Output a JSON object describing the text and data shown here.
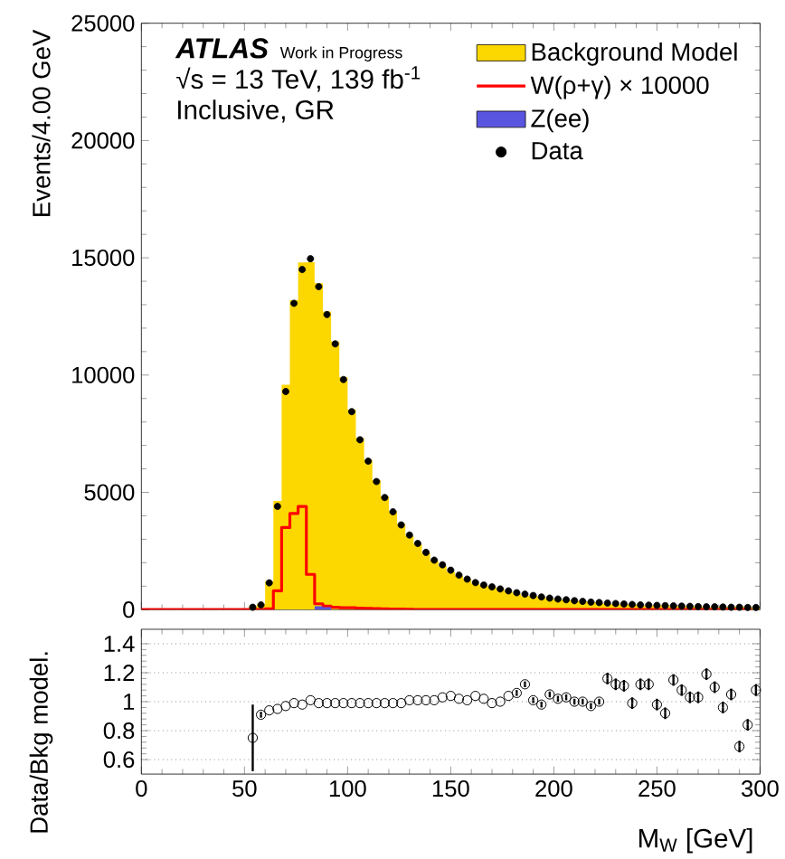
{
  "chart_data": [
    {
      "type": "histogram",
      "ylabel": "Events/4.00 GeV",
      "annotations": [
        "ATLAS",
        "Work in Progress",
        "√s = 13 TeV, 139 fb$^{-1}$",
        "Inclusive, GR"
      ],
      "bins": [
        0,
        4,
        8,
        12,
        16,
        20,
        24,
        28,
        32,
        36,
        40,
        44,
        48,
        52,
        56,
        60,
        64,
        68,
        72,
        76,
        80,
        84,
        88,
        92,
        96,
        100,
        104,
        108,
        112,
        116,
        120,
        124,
        128,
        132,
        136,
        140,
        144,
        148,
        152,
        156,
        160,
        164,
        168,
        172,
        176,
        180,
        184,
        188,
        192,
        196,
        200,
        204,
        208,
        212,
        216,
        220,
        224,
        228,
        232,
        236,
        240,
        244,
        248,
        252,
        256,
        260,
        264,
        268,
        272,
        276,
        280,
        284,
        288,
        292,
        296,
        300
      ],
      "series": [
        {
          "name": "Background Model",
          "type": "histogram",
          "color": "#fdd700",
          "values": [
            0,
            0,
            0,
            0,
            0,
            0,
            0,
            0,
            0,
            0,
            0,
            0,
            0,
            130,
            220,
            1210,
            4630,
            9590,
            13190,
            14800,
            14810,
            13910,
            12710,
            11440,
            9910,
            8530,
            7310,
            6390,
            5520,
            4830,
            4210,
            3650,
            3150,
            2790,
            2420,
            2090,
            1850,
            1620,
            1440,
            1290,
            1110,
            1030,
            980,
            880,
            770,
            680,
            590,
            590,
            550,
            470,
            440,
            410,
            380,
            350,
            330,
            300,
            240,
            230,
            220,
            220,
            180,
            170,
            180,
            180,
            140,
            140,
            140,
            130,
            100,
            100,
            120,
            100,
            140,
            110,
            80
          ]
        },
        {
          "name": "W(ρ+γ) × 10000",
          "type": "step",
          "color": "#ff0000",
          "x": [
            0,
            4,
            8,
            12,
            16,
            20,
            24,
            28,
            32,
            36,
            40,
            44,
            48,
            52,
            56,
            60,
            64,
            68,
            72,
            76,
            80,
            84,
            88,
            92,
            96,
            100,
            104,
            108,
            112,
            116,
            120,
            124,
            128,
            132,
            136,
            140,
            144,
            148,
            152,
            156,
            160,
            164,
            168,
            172,
            176,
            180,
            184,
            188,
            192,
            196,
            200,
            204,
            208,
            212,
            216,
            220,
            224,
            228,
            232,
            236,
            240,
            244,
            248,
            252,
            256,
            260,
            264,
            268,
            272,
            276,
            280,
            284,
            288,
            292,
            296
          ],
          "values": [
            0,
            0,
            0,
            0,
            0,
            0,
            0,
            0,
            0,
            0,
            0,
            0,
            0,
            0,
            0,
            30,
            800,
            3500,
            4100,
            4400,
            1500,
            250,
            150,
            100,
            80,
            80,
            60,
            50,
            40,
            30,
            20,
            20,
            10,
            0,
            0,
            0,
            0,
            0,
            0,
            0,
            0,
            0,
            0,
            0,
            0,
            0,
            0,
            0,
            0,
            0,
            0,
            0,
            0,
            0,
            0,
            0,
            0,
            0,
            0,
            0,
            0,
            0,
            0,
            0,
            0,
            0,
            0,
            0,
            0,
            0,
            0,
            0,
            0,
            0,
            0
          ]
        },
        {
          "name": "Z(ee)",
          "type": "histogram",
          "color": "#5a55e0",
          "values": [
            0,
            0,
            0,
            0,
            0,
            0,
            0,
            0,
            0,
            0,
            0,
            0,
            0,
            0,
            0,
            0,
            0,
            0,
            0,
            0,
            0,
            150,
            100,
            0,
            0,
            0,
            0,
            0,
            0,
            0,
            0,
            0,
            0,
            0,
            0,
            0,
            0,
            0,
            0,
            0,
            0,
            0,
            0,
            0,
            0,
            0,
            0,
            0,
            0,
            0,
            0,
            0,
            0,
            0,
            0,
            0,
            0,
            0,
            0,
            0,
            0,
            0,
            0,
            0,
            0,
            0,
            0,
            0,
            0,
            0,
            0,
            0,
            0,
            0,
            0
          ]
        },
        {
          "name": "Data",
          "type": "scatter",
          "marker": "circle",
          "color": "#000000",
          "x": [
            54,
            58,
            62,
            66,
            70,
            74,
            78,
            82,
            86,
            90,
            94,
            98,
            102,
            106,
            110,
            114,
            118,
            122,
            126,
            130,
            134,
            138,
            142,
            146,
            150,
            154,
            158,
            162,
            166,
            170,
            174,
            178,
            182,
            186,
            190,
            194,
            198,
            202,
            206,
            210,
            214,
            218,
            222,
            226,
            230,
            234,
            238,
            242,
            246,
            250,
            254,
            258,
            262,
            266,
            270,
            274,
            278,
            282,
            286,
            290,
            294,
            298
          ],
          "values": [
            100,
            200,
            1140,
            4400,
            9300,
            13060,
            14500,
            14960,
            13770,
            12580,
            11330,
            9810,
            8440,
            7240,
            6330,
            5460,
            4780,
            4170,
            3610,
            3180,
            2820,
            2440,
            2110,
            1910,
            1680,
            1470,
            1300,
            1150,
            1050,
            970,
            880,
            800,
            720,
            660,
            600,
            540,
            490,
            450,
            420,
            380,
            350,
            320,
            300,
            280,
            260,
            240,
            220,
            200,
            190,
            180,
            170,
            160,
            150,
            140,
            130,
            120,
            120,
            110,
            100,
            100,
            90,
            90
          ]
        }
      ],
      "xlim": [
        0,
        300
      ],
      "xticks": [
        0,
        50,
        100,
        150,
        200,
        250,
        300
      ],
      "ylim": [
        0,
        25000
      ],
      "yticks": [
        0,
        5000,
        10000,
        15000,
        20000,
        25000
      ],
      "tick_labels": "y",
      "legend": "top right"
    },
    {
      "type": "scatter",
      "xlabel": "M$_{W}$ [GeV]",
      "ylabel": "Data/Bkg model.",
      "marker": "circle",
      "grid": "y",
      "x": [
        54,
        58,
        62,
        66,
        70,
        74,
        78,
        82,
        86,
        90,
        94,
        98,
        102,
        106,
        110,
        114,
        118,
        122,
        126,
        130,
        134,
        138,
        142,
        146,
        150,
        154,
        158,
        162,
        166,
        170,
        174,
        178,
        182,
        186,
        190,
        194,
        198,
        202,
        206,
        210,
        214,
        218,
        222,
        226,
        230,
        234,
        238,
        242,
        246,
        250,
        254,
        258,
        262,
        266,
        270,
        274,
        278,
        282,
        286,
        290,
        294,
        298
      ],
      "values": [
        0.75,
        0.91,
        0.94,
        0.95,
        0.97,
        0.99,
        0.98,
        1.01,
        0.99,
        0.99,
        0.99,
        0.99,
        0.99,
        0.99,
        0.99,
        0.99,
        0.99,
        0.99,
        0.99,
        1.01,
        1.01,
        1.01,
        1.01,
        1.03,
        1.04,
        1.02,
        1.01,
        1.04,
        1.02,
        0.99,
        1.0,
        1.04,
        1.06,
        1.12,
        1.01,
        0.98,
        1.05,
        1.02,
        1.03,
        1.0,
        1.0,
        0.97,
        1.0,
        1.16,
        1.12,
        1.11,
        0.99,
        1.12,
        1.12,
        0.98,
        0.92,
        1.15,
        1.08,
        1.03,
        1.03,
        1.19,
        1.1,
        0.96,
        1.05,
        0.69,
        0.84,
        1.08
      ],
      "errors": [
        0.23,
        0.02,
        null,
        null,
        null,
        null,
        null,
        null,
        null,
        null,
        null,
        null,
        null,
        null,
        null,
        null,
        null,
        null,
        null,
        null,
        null,
        null,
        null,
        null,
        null,
        null,
        null,
        null,
        null,
        null,
        null,
        null,
        0.02,
        0.02,
        0.02,
        0.02,
        0.02,
        0.02,
        0.02,
        0.02,
        0.02,
        0.02,
        0.02,
        0.04,
        0.04,
        0.04,
        0.04,
        0.04,
        0.04,
        0.04,
        0.04,
        0.04,
        0.04,
        0.04,
        0.04,
        0.04,
        0.04,
        0.04,
        0.04,
        0.04,
        0.04,
        0.04
      ],
      "xlim": [
        0,
        300
      ],
      "xticks": [
        0,
        50,
        100,
        150,
        200,
        250,
        300
      ],
      "ylim": [
        0.5,
        1.5
      ],
      "yticks": [
        0.6,
        0.8,
        1,
        1.2,
        1.4
      ]
    }
  ]
}
